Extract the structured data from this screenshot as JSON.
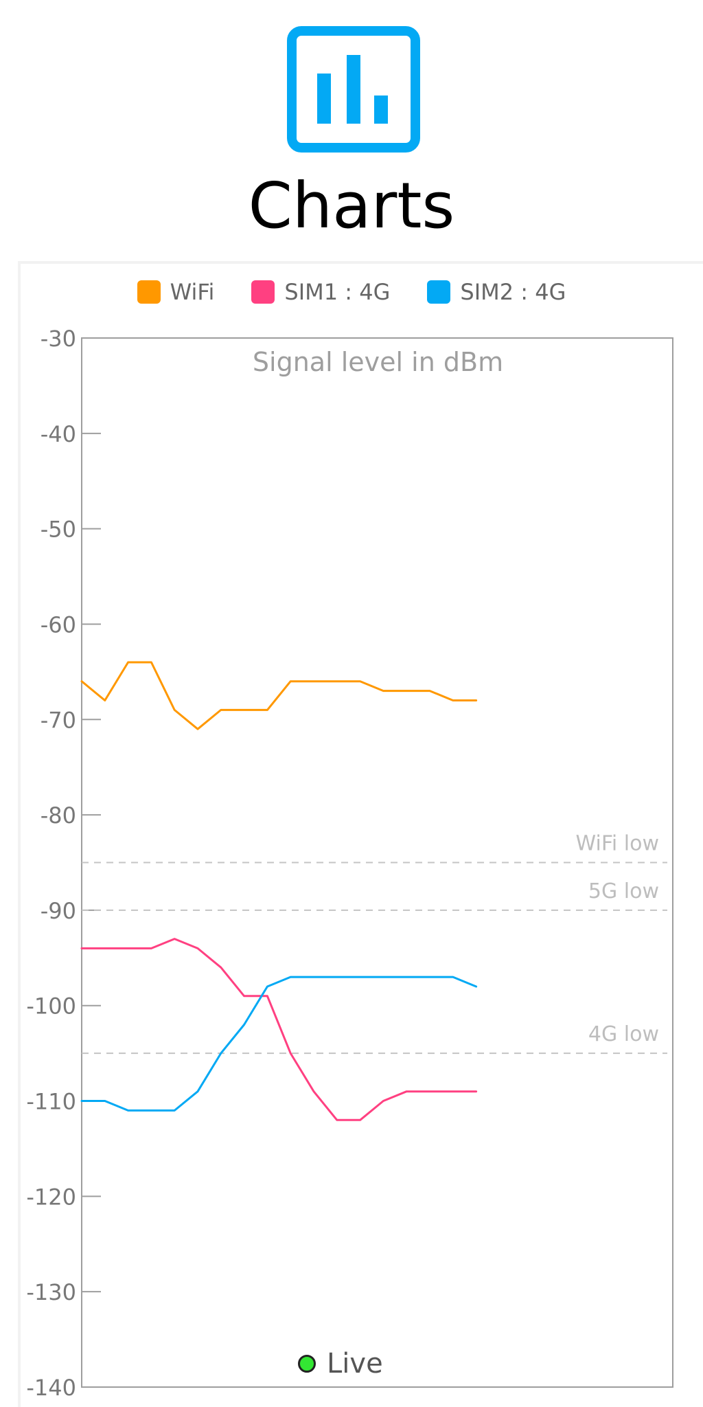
{
  "app": {
    "icon": "bar-chart-icon",
    "title": "Charts",
    "accent": "#03A9F4"
  },
  "status": {
    "live_label": "Live",
    "live_color": "#33E633"
  },
  "chart_data": {
    "type": "line",
    "title": "Signal level in dBm",
    "xlabel": "",
    "ylabel": "",
    "ylim": [
      -140,
      -30
    ],
    "yticks": [
      -30,
      -40,
      -50,
      -60,
      -70,
      -80,
      -90,
      -100,
      -110,
      -120,
      -130,
      -140
    ],
    "grid": false,
    "legend_position": "top",
    "x": [
      0,
      1,
      2,
      3,
      4,
      5,
      6,
      7,
      8,
      9,
      10,
      11,
      12,
      13,
      14,
      15,
      16,
      17
    ],
    "series": [
      {
        "name": "WiFi",
        "color": "#FF9800",
        "values": [
          -66,
          -68,
          -64,
          -64,
          -69,
          -71,
          -69,
          -69,
          -69,
          -66,
          -66,
          -66,
          -66,
          -67,
          -67,
          -67,
          -68,
          -68
        ]
      },
      {
        "name": "SIM1 : 4G",
        "color": "#FF4081",
        "values": [
          -94,
          -94,
          -94,
          -94,
          -93,
          -94,
          -96,
          -99,
          -99,
          -105,
          -109,
          -112,
          -112,
          -110,
          -109,
          -109,
          -109,
          -109
        ]
      },
      {
        "name": "SIM2 : 4G",
        "color": "#03A9F4",
        "values": [
          -110,
          -110,
          -111,
          -111,
          -111,
          -109,
          -105,
          -102,
          -98,
          -97,
          -97,
          -97,
          -97,
          -97,
          -97,
          -97,
          -97,
          -98
        ]
      }
    ],
    "thresholds": [
      {
        "label": "WiFi low",
        "value": -85
      },
      {
        "label": "5G low",
        "value": -90
      },
      {
        "label": "4G low",
        "value": -105
      }
    ]
  }
}
